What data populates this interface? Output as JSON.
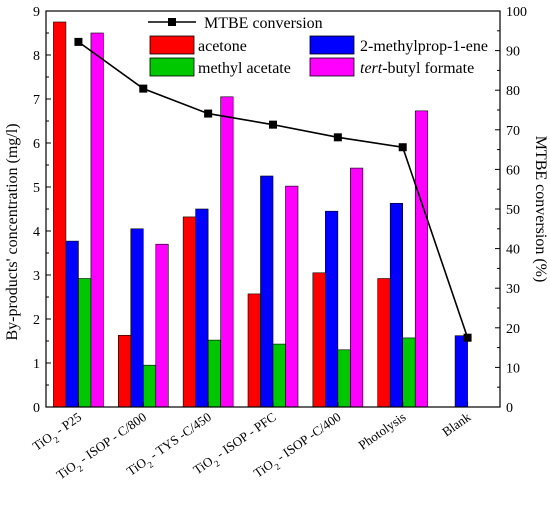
{
  "chart_data": {
    "type": "bar",
    "ylabel_left": "By-products' concentration (mg/l)",
    "ylabel_right": "MTBE conversion (%)",
    "ylim_left": [
      0,
      9
    ],
    "ylim_right": [
      0,
      100
    ],
    "yticks_left": [
      "0",
      "1",
      "2",
      "3",
      "4",
      "5",
      "6",
      "7",
      "8",
      "9"
    ],
    "yticks_right": [
      "0",
      "10",
      "20",
      "30",
      "40",
      "50",
      "60",
      "70",
      "80",
      "90",
      "100"
    ],
    "categories": [
      [
        "TiO",
        "2",
        " - P25"
      ],
      [
        "TiO",
        "2",
        " - ISOP - C/800"
      ],
      [
        "TiO",
        "2",
        " - TYS -C/450"
      ],
      [
        "TiO",
        "2",
        " - ISOP - PFC"
      ],
      [
        "TiO",
        "2",
        " - ISOP -C/400"
      ],
      [
        "Photolysis",
        "",
        ""
      ],
      [
        "Blank",
        "",
        ""
      ]
    ],
    "series": [
      {
        "name": "acetone",
        "color": "#ff0000",
        "values": [
          8.75,
          1.63,
          4.32,
          2.57,
          3.05,
          2.92,
          null
        ]
      },
      {
        "name": "2-methylprop-1-ene",
        "color": "#0000ff",
        "values": [
          3.77,
          4.05,
          4.5,
          5.25,
          4.45,
          4.63,
          1.62
        ]
      },
      {
        "name": "methyl acetate",
        "color": "#00c800",
        "values": [
          2.92,
          0.95,
          1.52,
          1.43,
          1.3,
          1.57,
          null
        ]
      },
      {
        "name": "tert-butyl formate",
        "color": "#ff00ff",
        "values": [
          8.5,
          3.7,
          7.05,
          5.02,
          5.43,
          6.73,
          null
        ]
      }
    ],
    "line": {
      "name": "MTBE conversion",
      "color": "#000000",
      "values": [
        92.2,
        80.4,
        74.1,
        71.3,
        68.1,
        65.6,
        17.5
      ]
    },
    "legend": {
      "line_label": "MTBE conversion",
      "entries": [
        {
          "label": "acetone",
          "italic_prefix": ""
        },
        {
          "label": "2-methylprop-1-ene",
          "italic_prefix": ""
        },
        {
          "label": "methyl acetate",
          "italic_prefix": ""
        },
        {
          "label": "-butyl formate",
          "italic_prefix": "tert"
        }
      ],
      "placement": "top"
    }
  }
}
